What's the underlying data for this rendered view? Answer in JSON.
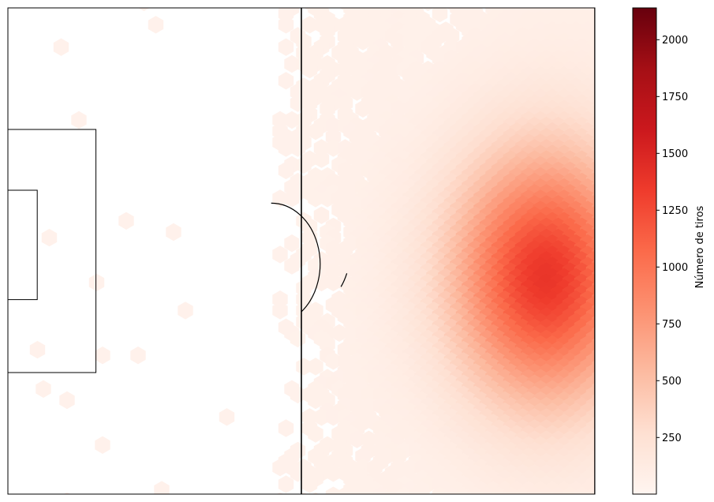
{
  "chart_data": {
    "type": "heatmap",
    "subtype": "hexbin",
    "title": "",
    "xlabel": "",
    "ylabel": "",
    "colormap": "Reds",
    "colorbar": {
      "label": "Número de tiros",
      "range": [
        1,
        2140
      ],
      "ticks": [
        250,
        500,
        750,
        1000,
        1250,
        1500,
        1750,
        2000
      ],
      "tick_labels": [
        "250",
        "500",
        "750",
        "1000",
        "1250",
        "1500",
        "1750",
        "2000"
      ]
    },
    "pitch": {
      "x_range": [
        -60,
        60
      ],
      "y_range": [
        0,
        80
      ],
      "halfway_line_x": 0,
      "center_circle_radius": 10,
      "penalty_area": {
        "x": [
          -60,
          -42
        ],
        "y": [
          20,
          60
        ]
      },
      "goal_area": {
        "x": [
          -60,
          -54
        ],
        "y": [
          30,
          48
        ]
      }
    },
    "peak_region": {
      "x": [
        45,
        55
      ],
      "y": [
        35,
        55
      ],
      "approx_max_count": 1300
    },
    "density_note": "Shot counts concentrate in the attacking right half, near the opponent's penalty area; few scattered low-count bins on the left side."
  }
}
